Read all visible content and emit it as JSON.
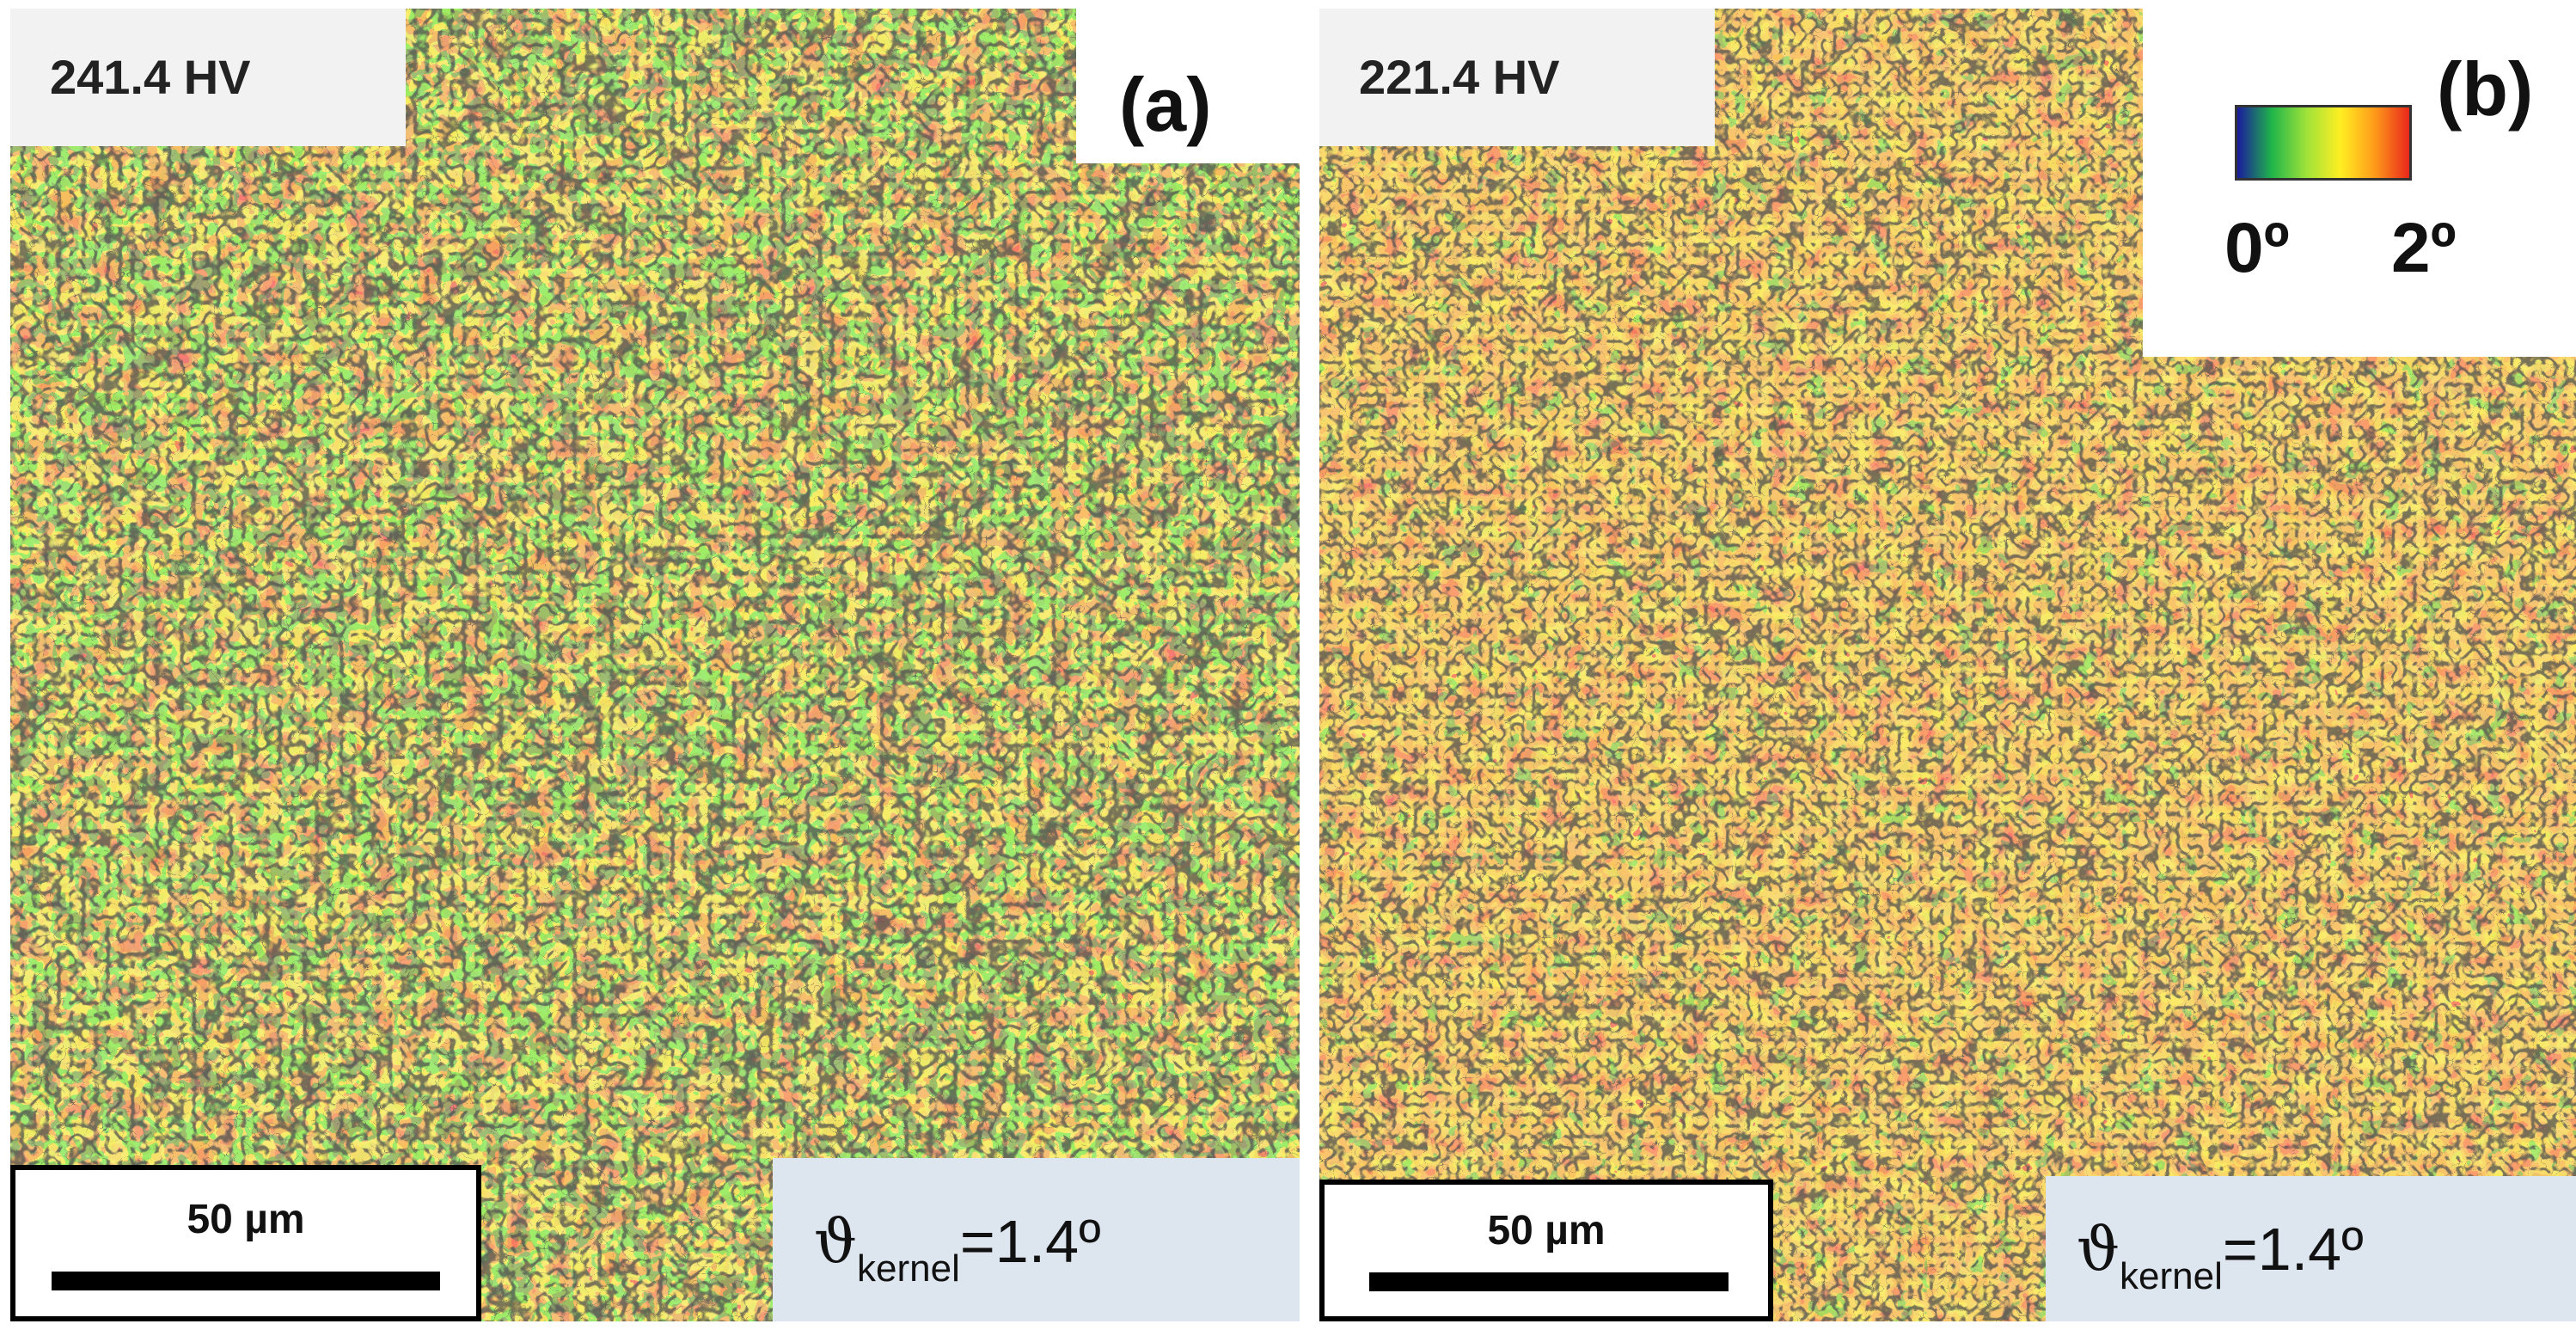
{
  "figure": {
    "panels": [
      {
        "tag": "(a)",
        "hardness": "241.4 HV",
        "scale_label": "50 µm",
        "kernel_symbol": "ϑ",
        "kernel_subscript": "kernel",
        "kernel_value": "=1.4º"
      },
      {
        "tag": "(b)",
        "hardness": "221.4 HV",
        "scale_label": "50 µm",
        "kernel_symbol": "ϑ",
        "kernel_subscript": "kernel",
        "kernel_value": "=1.4º"
      }
    ],
    "colorbar": {
      "min_label": "0º",
      "max_label": "2º",
      "colors": [
        "#1a1a9e",
        "#1fb54a",
        "#9ee23a",
        "#ffee22",
        "#ff9a1a",
        "#e8271a"
      ]
    },
    "map_colors": {
      "red": "#d8341c",
      "orange": "#ef7a1e",
      "yellow": "#f4c321",
      "green": "#62d32e",
      "boundary": "#1a1a1a"
    }
  }
}
